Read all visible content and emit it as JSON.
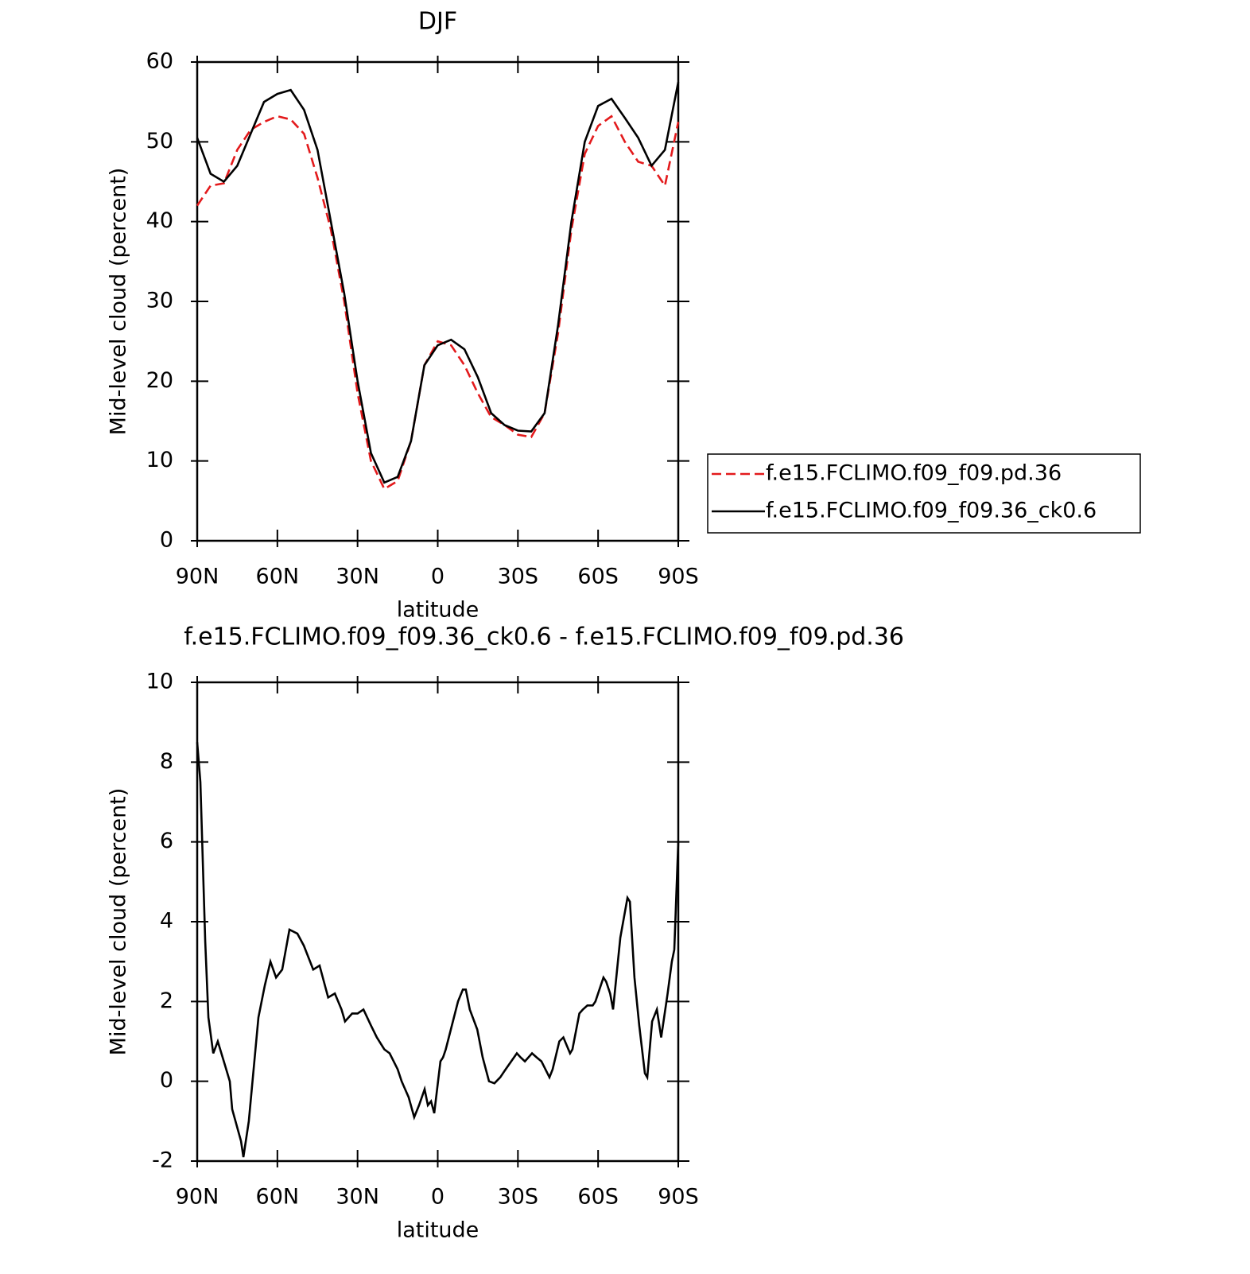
{
  "chart_data": [
    {
      "type": "line",
      "title": "DJF",
      "xlabel": "latitude",
      "ylabel": "Mid-level cloud (percent)",
      "x": [
        90,
        85,
        80,
        75,
        70,
        65,
        60,
        55,
        50,
        45,
        40,
        35,
        30,
        25,
        20,
        15,
        10,
        5,
        0,
        -5,
        -10,
        -15,
        -20,
        -25,
        -30,
        -35,
        -40,
        -45,
        -50,
        -55,
        -60,
        -65,
        -70,
        -75,
        -80,
        -85,
        -90
      ],
      "series": [
        {
          "name": "f.e15.FCLIMO.f09_f09.pd.36",
          "color": "#e31a1c",
          "dash": "dashed",
          "values": [
            42,
            44.5,
            44.8,
            49,
            51.5,
            52.5,
            53.2,
            52.8,
            51,
            45.5,
            39,
            30,
            18.5,
            10,
            6.5,
            7.5,
            12.5,
            22,
            25,
            24.5,
            22,
            18.5,
            15.5,
            14.5,
            13.3,
            13,
            16,
            26,
            39,
            48.5,
            52,
            53.2,
            50,
            47.5,
            47,
            44.5,
            52.5
          ]
        },
        {
          "name": "f.e15.FCLIMO.f09_f09.36_ck0.6",
          "color": "#000000",
          "dash": "solid",
          "values": [
            50.5,
            46,
            45,
            47,
            51,
            55,
            56,
            56.5,
            54,
            49,
            40,
            31,
            20,
            11,
            7.3,
            8,
            12.5,
            22,
            24.5,
            25.2,
            24,
            20.5,
            16,
            14.5,
            13.8,
            13.7,
            16,
            27,
            40,
            50,
            54.5,
            55.4,
            53,
            50.5,
            47,
            49,
            57.5
          ]
        }
      ],
      "xlim": [
        90,
        -90
      ],
      "xticks": [
        {
          "value": 90,
          "label": "90N"
        },
        {
          "value": 60,
          "label": "60N"
        },
        {
          "value": 30,
          "label": "30N"
        },
        0,
        {
          "value": -30,
          "label": "30S"
        },
        {
          "value": -60,
          "label": "60S"
        },
        {
          "value": -90,
          "label": "90S"
        }
      ],
      "ylim": [
        0,
        60
      ],
      "yticks": [
        0,
        10,
        20,
        30,
        40,
        50,
        60
      ],
      "legend": "right"
    },
    {
      "type": "line",
      "title": "f.e15.FCLIMO.f09_f09.36_ck0.6 - f.e15.FCLIMO.f09_f09.pd.36",
      "xlabel": "latitude",
      "ylabel": "Mid-level cloud (percent)",
      "x": [
        90,
        88.8,
        87,
        85.8,
        84,
        82.3,
        79.6,
        77.8,
        76.9,
        73.6,
        72.7,
        70.7,
        67.1,
        64.7,
        62.6,
        60.5,
        58.2,
        55.5,
        52.5,
        50.1,
        46.6,
        44.2,
        41,
        38.5,
        36,
        34.7,
        32,
        30,
        27.8,
        25,
        22.8,
        20,
        18,
        15,
        13.5,
        10.9,
        8.8,
        7,
        4.9,
        3.7,
        2.5,
        1.3,
        -1,
        -2,
        -3,
        -4.9,
        -7.6,
        -9.4,
        -10.5,
        -12,
        -14.8,
        -16.8,
        -19.2,
        -21.2,
        -23.4,
        -25.4,
        -27.5,
        -29.6,
        -31,
        -32.6,
        -35.3,
        -37,
        -38.8,
        -41.8,
        -43,
        -45.5,
        -47,
        -49.5,
        -50.4,
        -53,
        -54.3,
        -56,
        -58,
        -59,
        -62,
        -63,
        -64.5,
        -65.6,
        -68.3,
        -71,
        -71.9,
        -73.6,
        -75.4,
        -77.5,
        -78.4,
        -80.2,
        -82,
        -83.6,
        -86,
        -87.6,
        -88.5,
        -90
      ],
      "series": [
        {
          "color": "#000000",
          "dash": "solid",
          "values": [
            8.5,
            7.5,
            3.5,
            1.6,
            0.7,
            1.0,
            0.4,
            0,
            -0.7,
            -1.5,
            -1.9,
            -1.0,
            1.6,
            2.4,
            3.0,
            2.6,
            2.8,
            3.8,
            3.7,
            3.4,
            2.8,
            2.9,
            2.1,
            2.2,
            1.8,
            1.5,
            1.7,
            1.7,
            1.8,
            1.4,
            1.1,
            0.8,
            0.7,
            0.3,
            0,
            -0.4,
            -0.9,
            -0.6,
            -0.2,
            -0.6,
            -0.5,
            -0.8,
            0.5,
            0.6,
            0.8,
            1.3,
            2.0,
            2.3,
            2.3,
            1.8,
            1.3,
            0.6,
            0,
            -0.05,
            0.1,
            0.3,
            0.5,
            0.7,
            0.6,
            0.5,
            0.7,
            0.6,
            0.5,
            0.1,
            0.3,
            1.0,
            1.1,
            0.7,
            0.8,
            1.7,
            1.8,
            1.9,
            1.9,
            2.0,
            2.6,
            2.5,
            2.2,
            1.8,
            3.6,
            4.6,
            4.5,
            2.6,
            1.4,
            0.2,
            0.1,
            1.5,
            1.8,
            1.1,
            2.2,
            3.0,
            3.3,
            6
          ]
        }
      ],
      "xlim": [
        90,
        -90
      ],
      "xticks": [
        {
          "value": 90,
          "label": "90N"
        },
        {
          "value": 60,
          "label": "60N"
        },
        {
          "value": 30,
          "label": "30N"
        },
        0,
        {
          "value": -30,
          "label": "30S"
        },
        {
          "value": -60,
          "label": "60S"
        },
        {
          "value": -90,
          "label": "90S"
        }
      ],
      "ylim": [
        -2,
        10
      ],
      "yticks": [
        -2,
        0,
        2,
        4,
        6,
        8,
        10
      ]
    }
  ]
}
